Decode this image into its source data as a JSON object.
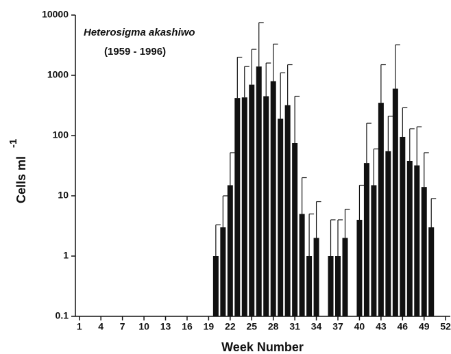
{
  "chart_data": {
    "type": "bar",
    "log_y": true,
    "annotations": [
      "Heterosigma akashiwo",
      "(1959 - 1996)"
    ],
    "xlabel": "Week Number",
    "ylabel": "Cells ml",
    "ylabel_superscript": "-1",
    "color": "#111111",
    "x": [
      1,
      2,
      3,
      4,
      5,
      6,
      7,
      8,
      9,
      10,
      11,
      12,
      13,
      14,
      15,
      16,
      17,
      18,
      19,
      20,
      21,
      22,
      23,
      24,
      25,
      26,
      27,
      28,
      29,
      30,
      31,
      32,
      33,
      34,
      35,
      36,
      37,
      38,
      39,
      40,
      41,
      42,
      43,
      44,
      45,
      46,
      47,
      48,
      49,
      50,
      51,
      52
    ],
    "values": [
      null,
      null,
      null,
      null,
      null,
      null,
      null,
      null,
      null,
      null,
      null,
      null,
      null,
      null,
      null,
      null,
      null,
      null,
      null,
      1,
      3,
      15,
      420,
      430,
      700,
      1400,
      450,
      800,
      190,
      320,
      75,
      5,
      1,
      2,
      null,
      1,
      1,
      2,
      null,
      4,
      35,
      15,
      350,
      55,
      600,
      95,
      38,
      32,
      14,
      3,
      null,
      null
    ],
    "error_upper": [
      null,
      null,
      null,
      null,
      null,
      null,
      null,
      null,
      null,
      null,
      null,
      null,
      null,
      null,
      null,
      null,
      null,
      null,
      null,
      3.3,
      10,
      52,
      2000,
      1400,
      2700,
      7500,
      1600,
      3300,
      1100,
      1500,
      450,
      20,
      5,
      8,
      null,
      4,
      4,
      6,
      null,
      15,
      160,
      60,
      1500,
      210,
      3200,
      290,
      130,
      140,
      52,
      9,
      null,
      null
    ],
    "xlim": [
      0.45,
      52.65
    ],
    "xticks": [
      1,
      4,
      7,
      10,
      13,
      16,
      19,
      22,
      25,
      28,
      31,
      34,
      37,
      40,
      43,
      46,
      49,
      52
    ],
    "ylim": [
      0.1,
      10000
    ],
    "yticks": [
      0.1,
      1,
      10,
      100,
      1000,
      10000
    ]
  }
}
